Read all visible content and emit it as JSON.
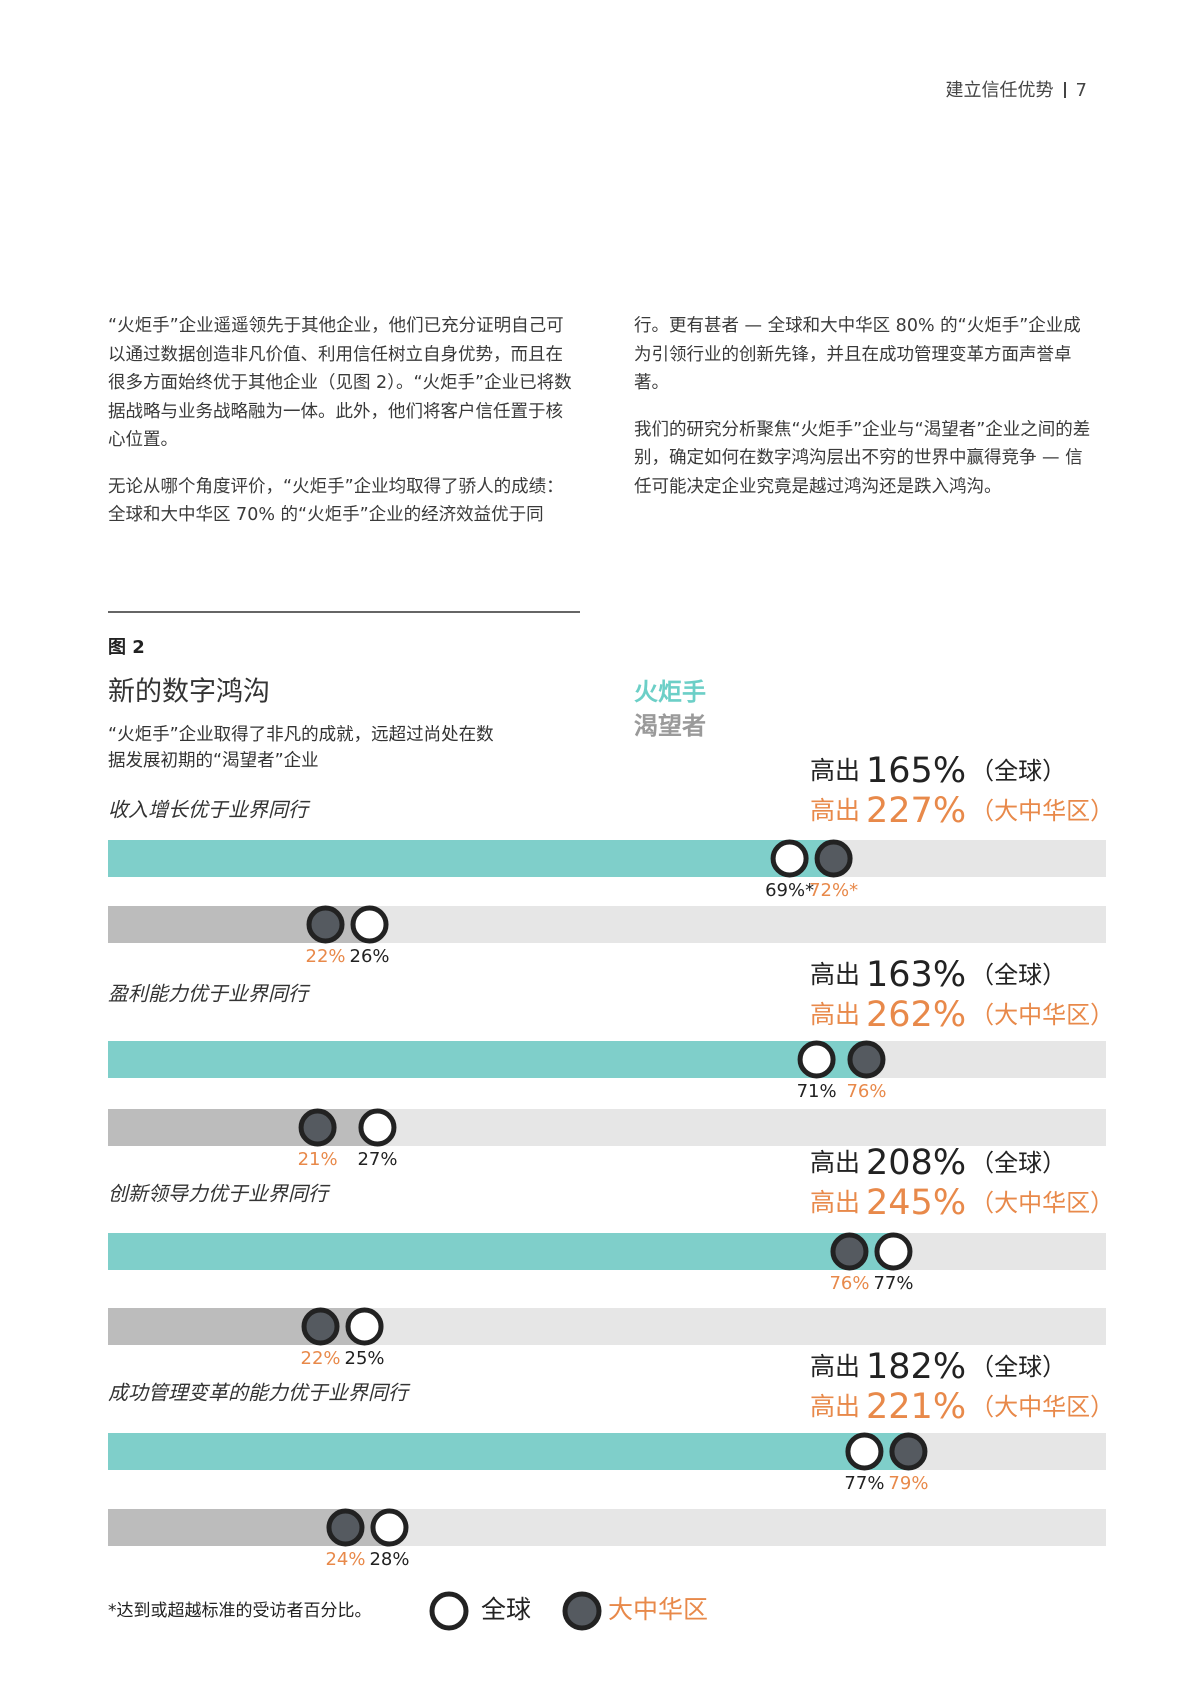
{
  "header": {
    "section": "建立信任优势",
    "page": "7"
  },
  "body": {
    "paragraphs": [
      "“火炬手”企业遥遥领先于其他企业，他们已充分证明自己可以通过数据创造非凡价值、利用信任树立自身优势，而且在很多方面始终优于其他企业（见图 2）。“火炬手”企业已将数据战略与业务战略融为一体。此外，他们将客户信任置于核心位置。",
      "无论从哪个角度评价，“火炬手”企业均取得了骄人的成绩：全球和大中华区 70% 的“火炬手”企业的经济效益优于同行。更有甚者 — 全球和大中华区 80% 的“火炬手”企业成为引领行业的创新先锋，并且在成功管理变革方面声誉卓著。",
      "我们的研究分析聚焦“火炬手”企业与“渴望者”企业之间的差别，确定如何在数字鸿沟层出不穷的世界中赢得竞争 — 信任可能决定企业究竟是越过鸿沟还是跌入鸿沟。"
    ]
  },
  "chart_data": {
    "type": "dot-bar",
    "figure_label": "图 2",
    "title": "新的数字鸿沟",
    "subtitle": "“火炬手”企业取得了非凡的成就，远超过尚处在数据发展初期的“渴望者”企业",
    "categories": [
      "收入增长优于业界同行",
      "盈利能力优于业界同行",
      "创新领导力优于业界同行",
      "成功管理变革的能力优于业界同行"
    ],
    "xlim": [
      0,
      100
    ],
    "series": [
      {
        "name": "火炬手",
        "color": "#7fcfca",
        "global": {
          "values": [
            69,
            71,
            77,
            77
          ],
          "value_labels": [
            "69%*",
            "71%",
            "77%",
            "77%"
          ]
        },
        "greater_china": {
          "values": [
            72,
            76,
            76,
            79
          ],
          "value_labels": [
            "72%*",
            "76%",
            "76%",
            "79%"
          ]
        }
      },
      {
        "name": "渴望者",
        "color": "#bcbcbc",
        "global": {
          "values": [
            26,
            27,
            25,
            28
          ],
          "value_labels": [
            "26%",
            "27%",
            "25%",
            "28%"
          ]
        },
        "greater_china": {
          "values": [
            22,
            21,
            22,
            24
          ],
          "value_labels": [
            "22%",
            "21%",
            "22%",
            "24%"
          ]
        }
      }
    ],
    "callouts": {
      "prefix": "高出",
      "global": {
        "labels": [
          "165%",
          "163%",
          "208%",
          "182%"
        ],
        "suffix": "（全球）"
      },
      "greater_china": {
        "labels": [
          "227%",
          "262%",
          "245%",
          "221%"
        ],
        "suffix": "（大中华区）"
      }
    },
    "legend": {
      "global": "全球",
      "greater_china": "大中华区"
    },
    "footnote": "*达到或超越标准的受访者百分比。"
  }
}
